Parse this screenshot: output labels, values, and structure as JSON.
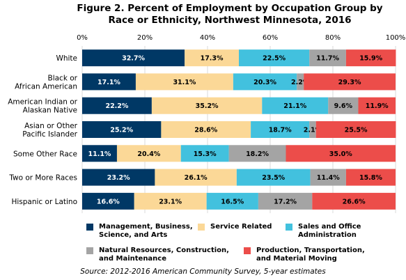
{
  "chart_data": {
    "type": "bar",
    "orientation": "horizontal",
    "stacked": true,
    "title": "Figure 2. Percent of Employment by Occupation Group by Race or Ethnicity, Northwest Minnesota, 2016",
    "xlim": [
      0,
      100
    ],
    "x_ticks": [
      "0%",
      "20%",
      "40%",
      "60%",
      "80%",
      "100%"
    ],
    "grid": true,
    "legend_position": "bottom",
    "categories": [
      "White",
      "Black or\nAfrican American",
      "American Indian or\nAlaskan Native",
      "Asian or Other\nPacific Islander",
      "Some Other Race",
      "Two or More Races",
      "Hispanic or Latino"
    ],
    "series": [
      {
        "name": "Management, Business,\nScience, and Arts",
        "color": "#003865",
        "values": [
          32.7,
          17.1,
          22.2,
          25.2,
          11.1,
          23.2,
          16.6
        ],
        "labels": [
          "32.7%",
          "17.1%",
          "22.2%",
          "25.2%",
          "11.1%",
          "23.2%",
          "16.6%"
        ]
      },
      {
        "name": "Service Related",
        "color": "#fbd897",
        "values": [
          17.3,
          31.1,
          35.2,
          28.6,
          20.4,
          26.1,
          23.1
        ],
        "labels": [
          "17.3%",
          "31.1%",
          "35.2%",
          "28.6%",
          "20.4%",
          "26.1%",
          "23.1%"
        ]
      },
      {
        "name": "Sales and Office\nAdministration",
        "color": "#42c1de",
        "values": [
          22.5,
          20.3,
          21.1,
          18.7,
          15.3,
          23.5,
          16.5
        ],
        "labels": [
          "22.5%",
          "20.3%",
          "21.1%",
          "18.7%",
          "15.3%",
          "23.5%",
          "16.5%"
        ]
      },
      {
        "name": "Natural Resources, Construction,\nand Maintenance",
        "color": "#a4a4a4",
        "values": [
          11.7,
          2.2,
          9.6,
          2.1,
          18.2,
          11.4,
          17.2
        ],
        "labels": [
          "11.7%",
          "2.2%",
          "9.6%",
          "2.1%",
          "18.2%",
          "11.4%",
          "17.2%"
        ]
      },
      {
        "name": "Production, Transportation,\nand Material Moving",
        "color": "#ec4d4a",
        "values": [
          15.9,
          29.3,
          11.9,
          25.5,
          35.0,
          15.8,
          26.6
        ],
        "labels": [
          "15.9%",
          "29.3%",
          "11.9%",
          "25.5%",
          "35.0%",
          "15.8%",
          "26.6%"
        ]
      }
    ]
  },
  "source": "Source: 2012-2016 American Community Survey, 5-year estimates"
}
